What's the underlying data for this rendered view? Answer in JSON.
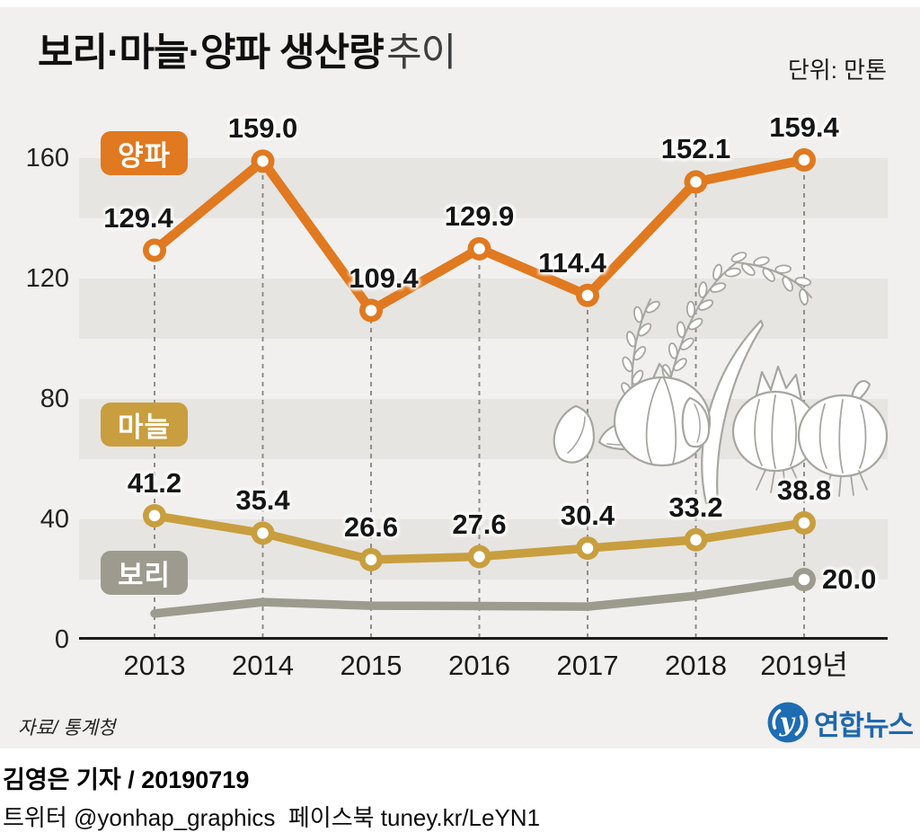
{
  "header": {
    "title_strong": "보리·마늘·양파 생산량",
    "title_light": "추이",
    "unit": "단위: 만톤"
  },
  "chart_data": {
    "type": "line",
    "title": "보리·마늘·양파 생산량 추이",
    "unit_label": "단위: 만톤",
    "categories": [
      "2013",
      "2014",
      "2015",
      "2016",
      "2017",
      "2018",
      "2019년"
    ],
    "yticks": [
      0,
      40,
      80,
      120,
      160
    ],
    "ylim": [
      0,
      170
    ],
    "grid": "zebra-bands-every-20",
    "legend_position": "badges-left-inline",
    "series": [
      {
        "name": "양파",
        "color": "#e0791f",
        "values": [
          129.4,
          159.0,
          109.4,
          129.9,
          114.4,
          152.1,
          159.4
        ],
        "labels": [
          "129.4",
          "159.0",
          "109.4",
          "129.9",
          "114.4",
          "152.1",
          "159.4"
        ],
        "markers": "all",
        "label_dx": [
          -18,
          0,
          14,
          0,
          -17,
          0,
          0
        ]
      },
      {
        "name": "마늘",
        "color": "#c89e3e",
        "values": [
          41.2,
          35.4,
          26.6,
          27.6,
          30.4,
          33.2,
          38.8
        ],
        "labels": [
          "41.2",
          "35.4",
          "26.6",
          "27.6",
          "30.4",
          "33.2",
          "38.8"
        ],
        "markers": "all",
        "label_dx": [
          0,
          0,
          0,
          0,
          0,
          0,
          0
        ]
      },
      {
        "name": "보리",
        "color": "#9c9b8e",
        "values": [
          8.7,
          12.5,
          11.3,
          11.2,
          11.0,
          14.6,
          20.0
        ],
        "labels": [
          null,
          null,
          null,
          null,
          null,
          null,
          "20.0"
        ],
        "markers": "last",
        "label_position": "right"
      }
    ]
  },
  "footer": {
    "source": "자료/ 통계청",
    "agency": "연합뉴스",
    "byline": "김영은 기자 / 20190719",
    "social": "트위터 @yonhap_graphics  페이스북 tuney.kr/LeYN1"
  }
}
